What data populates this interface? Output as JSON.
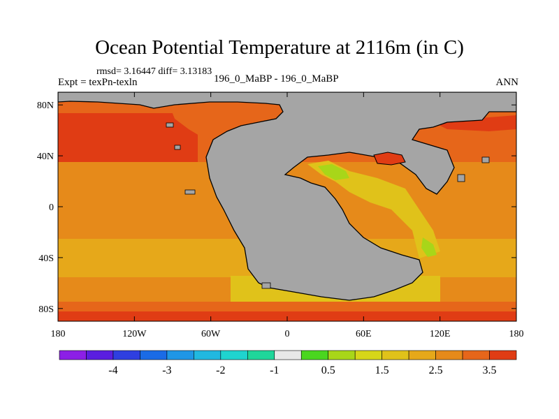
{
  "chart_data": {
    "type": "heatmap",
    "title": "Ocean Potential Temperature at 2116m (in C)",
    "stats_text": "rmsd= 3.16447 diff= 3.13183",
    "left_label": "Expt = texPn-texln",
    "center_label": "196_0_MaBP - 196_0_MaBP",
    "right_label": "ANN",
    "x_ticks": [
      "180",
      "120W",
      "60W",
      "0",
      "60E",
      "120E",
      "180"
    ],
    "y_ticks": [
      "80N",
      "40N",
      "0",
      "40S",
      "80S"
    ],
    "xlim": [
      -180,
      180
    ],
    "ylim": [
      -90,
      90
    ],
    "colorbar": {
      "colors": [
        "#8c1fe6",
        "#5a1ee0",
        "#2f3fe0",
        "#1a6be6",
        "#1f96e6",
        "#21b8e0",
        "#1fd4cf",
        "#1fd69a",
        "#e8e8e8",
        "#4ad61f",
        "#a8d619",
        "#d6d619",
        "#e0c21a",
        "#e6a81a",
        "#e68a1a",
        "#e6661a",
        "#e03c14"
      ],
      "labels": [
        "-4",
        "-3",
        "-2",
        "-1",
        "0.5",
        "1.5",
        "2.5",
        "3.5"
      ]
    },
    "land_color": "#a5a5a5"
  }
}
